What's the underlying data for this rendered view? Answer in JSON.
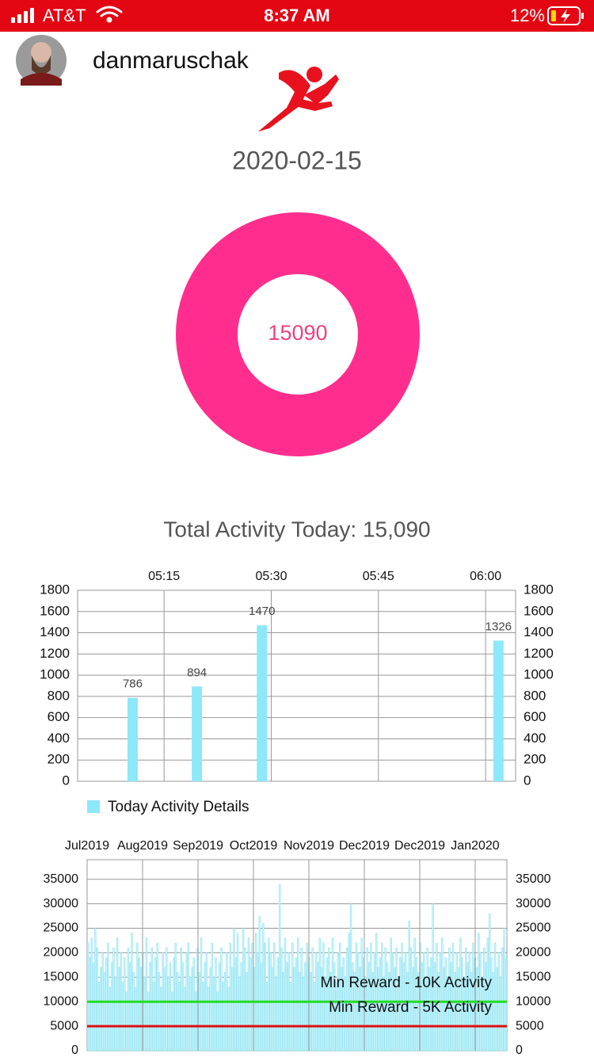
{
  "status_bar": {
    "carrier": "AT&T",
    "time": "8:37 AM",
    "battery": "12%"
  },
  "header": {
    "username": "danmaruschak"
  },
  "date": "2020-02-15",
  "donut_value": 15090,
  "total_activity": "Total Activity Today: 15,090",
  "chart_data": [
    {
      "type": "bar",
      "x": [
        310.6,
        319.6,
        328.7,
        361.8
      ],
      "values": [
        786,
        894,
        1470,
        1326
      ],
      "color": "#8de8f9",
      "xlim": [
        302.9,
        364.2
      ],
      "xticks": [
        {
          "value": 315,
          "label": "05:15"
        },
        {
          "value": 330,
          "label": "05:30"
        },
        {
          "value": 345,
          "label": "05:45"
        },
        {
          "value": 360,
          "label": "06:00"
        }
      ],
      "ylim": [
        0,
        1800
      ],
      "yticks": [
        0,
        200,
        400,
        600,
        800,
        1000,
        1200,
        1400,
        1600,
        1800
      ],
      "mirror_y_axis": true,
      "grid": true,
      "data_labels": true,
      "legend": "Today Activity Details"
    },
    {
      "type": "bar",
      "values": [
        22000,
        19000,
        23000,
        18000,
        25000,
        21000,
        14000,
        17000,
        20000,
        16000,
        19000,
        22000,
        13000,
        18000,
        21000,
        15000,
        23000,
        17000,
        20000,
        14000,
        19000,
        12000,
        21000,
        18000,
        24000,
        16000,
        13000,
        22000,
        19000,
        17000,
        20000,
        15000,
        23000,
        12000,
        18000,
        21000,
        14000,
        19000,
        22000,
        16000,
        13000,
        20000,
        17000,
        21000,
        15000,
        18000,
        12000,
        19000,
        22000,
        16000,
        14000,
        21000,
        18000,
        13000,
        20000,
        22000,
        15000,
        17000,
        19000,
        12000,
        21000,
        16000,
        23000,
        14000,
        18000,
        20000,
        13000,
        17000,
        22000,
        15000,
        19000,
        12000,
        18000,
        21000,
        14000,
        16000,
        20000,
        13000,
        22000,
        17000,
        25000,
        19000,
        24000,
        15000,
        18000,
        25000,
        21000,
        16000,
        23000,
        19000,
        22000,
        17000,
        24000,
        20000,
        27500,
        18000,
        26000,
        22000,
        14000,
        23000,
        20000,
        17000,
        22000,
        15000,
        19000,
        34000,
        21000,
        16000,
        23000,
        18000,
        20000,
        14000,
        22000,
        17000,
        19000,
        23000,
        16000,
        21000,
        15000,
        18000,
        22000,
        19000,
        16000,
        21000,
        14000,
        20000,
        18000,
        23000,
        17000,
        22000,
        15000,
        19000,
        21000,
        16000,
        23000,
        18000,
        14000,
        20000,
        22000,
        17000,
        19000,
        15000,
        21000,
        24000,
        30000,
        18000,
        16000,
        22000,
        20000,
        17000,
        23000,
        19000,
        15000,
        21000,
        18000,
        22000,
        16000,
        20000,
        24000,
        17000,
        19000,
        22000,
        15000,
        21000,
        18000,
        16000,
        23000,
        20000,
        17000,
        21000,
        15000,
        19000,
        22000,
        18000,
        20000,
        16000,
        26500,
        21000,
        17000,
        23000,
        19000,
        16000,
        22000,
        18000,
        20000,
        15000,
        21000,
        17000,
        19000,
        30000,
        18000,
        22000,
        16000,
        20000,
        23000,
        17000,
        19000,
        15000,
        21000,
        18000,
        22000,
        16000,
        20000,
        17000,
        23000,
        19000,
        15000,
        21000,
        18000,
        20000,
        16000,
        22000,
        19000,
        17000,
        24000,
        20000,
        15000,
        21000,
        18000,
        23000,
        28000,
        19000,
        16000,
        22000,
        17000,
        20000,
        15000,
        21000,
        25000,
        19000
      ],
      "color": "#c4f4fb",
      "x_labels": [
        "Jul2019",
        "Aug2019",
        "Sep2019",
        "Oct2019",
        "Nov2019",
        "Dec2019",
        "Dec2019",
        "Jan2020"
      ],
      "ylim": [
        0,
        39000
      ],
      "yticks": [
        0,
        5000,
        10000,
        15000,
        20000,
        25000,
        30000,
        35000
      ],
      "mirror_y_axis": true,
      "grid": true,
      "reference_lines": [
        {
          "label": "Min Reward - 10K Activity",
          "value": 10000,
          "color": "#22dd22"
        },
        {
          "label": "Min Reward - 5K Activity",
          "value": 5000,
          "color": "#dd1111"
        }
      ]
    }
  ]
}
